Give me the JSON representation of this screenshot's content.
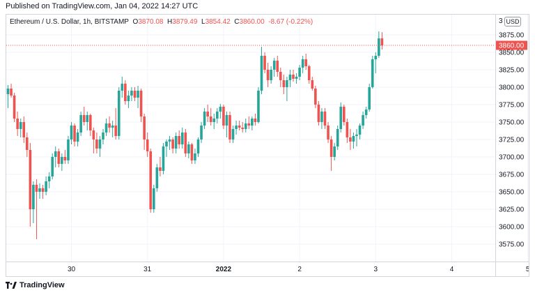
{
  "header": {
    "published": "Published on TradingView.com, Jan 04, 2022 14:27 UTC"
  },
  "legend": {
    "symbol": "Ethereum / U.S. Dollar, 1h, BITSTAMP",
    "o_label": "O",
    "o": "3870.08",
    "h_label": "H",
    "h": "3879.49",
    "l_label": "L",
    "l": "3854.42",
    "c_label": "C",
    "c": "3860.00",
    "change": "-8.67 (-0.22%)"
  },
  "currency_button": "USD",
  "footer": {
    "brand": "TradingView",
    "logo_icon": "tradingview-logo-icon"
  },
  "colors": {
    "up": "#26a69a",
    "down": "#ef5350",
    "grid": "#f0f3fa",
    "text": "#131722"
  },
  "chart_data": {
    "type": "candlestick",
    "title": "Ethereum / U.S. Dollar, 1h, BITSTAMP",
    "ylim": [
      3550,
      3900
    ],
    "yticks": [
      "3575.00",
      "3600.00",
      "3625.00",
      "3650.00",
      "3675.00",
      "3700.00",
      "3725.00",
      "3750.00",
      "3775.00",
      "3800.00",
      "3825.00",
      "3850.00",
      "3875.00"
    ],
    "ytick_values": [
      3575,
      3600,
      3625,
      3650,
      3675,
      3700,
      3725,
      3750,
      3775,
      3800,
      3825,
      3850,
      3875
    ],
    "partial_top_tick": "3",
    "x_ticks": [
      {
        "label": "30",
        "hour": 20,
        "bold": false
      },
      {
        "label": "31",
        "hour": 44,
        "bold": false
      },
      {
        "label": "2022",
        "hour": 68,
        "bold": true
      },
      {
        "label": "2",
        "hour": 92,
        "bold": false
      },
      {
        "label": "3",
        "hour": 116,
        "bold": false
      },
      {
        "label": "4",
        "hour": 140,
        "bold": false
      },
      {
        "label": "5",
        "hour": 164,
        "bold": false
      }
    ],
    "last_price": 3860.0,
    "last_price_label": "3860.00",
    "grid": true,
    "candles": [
      [
        3790,
        3803,
        3770,
        3798
      ],
      [
        3798,
        3805,
        3785,
        3788
      ],
      [
        3788,
        3792,
        3750,
        3755
      ],
      [
        3755,
        3765,
        3730,
        3740
      ],
      [
        3740,
        3755,
        3728,
        3750
      ],
      [
        3750,
        3758,
        3720,
        3728
      ],
      [
        3728,
        3735,
        3700,
        3710
      ],
      [
        3710,
        3720,
        3600,
        3625
      ],
      [
        3625,
        3665,
        3605,
        3660
      ],
      [
        3660,
        3668,
        3582,
        3650
      ],
      [
        3650,
        3662,
        3640,
        3655
      ],
      [
        3655,
        3660,
        3640,
        3650
      ],
      [
        3650,
        3672,
        3645,
        3665
      ],
      [
        3665,
        3678,
        3655,
        3672
      ],
      [
        3672,
        3705,
        3668,
        3700
      ],
      [
        3700,
        3715,
        3685,
        3708
      ],
      [
        3708,
        3712,
        3685,
        3690
      ],
      [
        3690,
        3705,
        3680,
        3700
      ],
      [
        3700,
        3710,
        3690,
        3695
      ],
      [
        3695,
        3730,
        3690,
        3725
      ],
      [
        3725,
        3750,
        3718,
        3745
      ],
      [
        3745,
        3748,
        3715,
        3722
      ],
      [
        3722,
        3740,
        3715,
        3735
      ],
      [
        3735,
        3765,
        3730,
        3760
      ],
      [
        3760,
        3772,
        3745,
        3750
      ],
      [
        3750,
        3765,
        3738,
        3760
      ],
      [
        3760,
        3762,
        3730,
        3738
      ],
      [
        3738,
        3742,
        3705,
        3725
      ],
      [
        3725,
        3735,
        3705,
        3712
      ],
      [
        3712,
        3730,
        3700,
        3725
      ],
      [
        3725,
        3740,
        3718,
        3735
      ],
      [
        3735,
        3755,
        3730,
        3748
      ],
      [
        3748,
        3758,
        3735,
        3742
      ],
      [
        3742,
        3752,
        3728,
        3745
      ],
      [
        3745,
        3770,
        3725,
        3730
      ],
      [
        3730,
        3800,
        3725,
        3795
      ],
      [
        3795,
        3815,
        3785,
        3805
      ],
      [
        3805,
        3810,
        3775,
        3780
      ],
      [
        3780,
        3795,
        3770,
        3788
      ],
      [
        3788,
        3800,
        3780,
        3795
      ],
      [
        3795,
        3800,
        3780,
        3785
      ],
      [
        3785,
        3802,
        3770,
        3795
      ],
      [
        3795,
        3798,
        3750,
        3758
      ],
      [
        3758,
        3762,
        3710,
        3725
      ],
      [
        3725,
        3735,
        3700,
        3708
      ],
      [
        3708,
        3712,
        3620,
        3625
      ],
      [
        3625,
        3660,
        3620,
        3655
      ],
      [
        3655,
        3690,
        3650,
        3685
      ],
      [
        3685,
        3700,
        3672,
        3680
      ],
      [
        3680,
        3720,
        3675,
        3715
      ],
      [
        3715,
        3725,
        3700,
        3722
      ],
      [
        3722,
        3730,
        3710,
        3725
      ],
      [
        3725,
        3728,
        3705,
        3712
      ],
      [
        3712,
        3735,
        3705,
        3730
      ],
      [
        3730,
        3738,
        3712,
        3718
      ],
      [
        3718,
        3742,
        3712,
        3735
      ],
      [
        3735,
        3740,
        3700,
        3705
      ],
      [
        3705,
        3722,
        3698,
        3718
      ],
      [
        3718,
        3720,
        3690,
        3695
      ],
      [
        3695,
        3712,
        3690,
        3705
      ],
      [
        3705,
        3728,
        3700,
        3725
      ],
      [
        3725,
        3750,
        3720,
        3745
      ],
      [
        3745,
        3770,
        3740,
        3765
      ],
      [
        3765,
        3775,
        3750,
        3758
      ],
      [
        3758,
        3770,
        3745,
        3750
      ],
      [
        3750,
        3762,
        3740,
        3755
      ],
      [
        3755,
        3770,
        3748,
        3765
      ],
      [
        3765,
        3776,
        3755,
        3772
      ],
      [
        3772,
        3775,
        3740,
        3745
      ],
      [
        3745,
        3765,
        3728,
        3760
      ],
      [
        3760,
        3765,
        3720,
        3725
      ],
      [
        3725,
        3745,
        3720,
        3740
      ],
      [
        3740,
        3752,
        3732,
        3745
      ],
      [
        3745,
        3752,
        3738,
        3742
      ],
      [
        3742,
        3750,
        3735,
        3740
      ],
      [
        3740,
        3755,
        3735,
        3748
      ],
      [
        3748,
        3758,
        3740,
        3745
      ],
      [
        3745,
        3758,
        3738,
        3755
      ],
      [
        3755,
        3762,
        3745,
        3750
      ],
      [
        3750,
        3800,
        3748,
        3795
      ],
      [
        3795,
        3858,
        3790,
        3845
      ],
      [
        3845,
        3850,
        3820,
        3825
      ],
      [
        3825,
        3835,
        3800,
        3810
      ],
      [
        3810,
        3830,
        3805,
        3825
      ],
      [
        3825,
        3842,
        3815,
        3838
      ],
      [
        3838,
        3845,
        3815,
        3822
      ],
      [
        3822,
        3828,
        3800,
        3810
      ],
      [
        3810,
        3818,
        3790,
        3800
      ],
      [
        3800,
        3815,
        3780,
        3810
      ],
      [
        3810,
        3825,
        3800,
        3818
      ],
      [
        3818,
        3825,
        3808,
        3812
      ],
      [
        3812,
        3820,
        3805,
        3815
      ],
      [
        3815,
        3832,
        3810,
        3828
      ],
      [
        3828,
        3845,
        3820,
        3840
      ],
      [
        3840,
        3848,
        3825,
        3830
      ],
      [
        3830,
        3832,
        3805,
        3810
      ],
      [
        3810,
        3815,
        3795,
        3798
      ],
      [
        3798,
        3802,
        3770,
        3775
      ],
      [
        3775,
        3780,
        3745,
        3750
      ],
      [
        3750,
        3770,
        3740,
        3765
      ],
      [
        3765,
        3770,
        3740,
        3745
      ],
      [
        3745,
        3750,
        3720,
        3725
      ],
      [
        3725,
        3730,
        3680,
        3700
      ],
      [
        3700,
        3720,
        3695,
        3715
      ],
      [
        3715,
        3745,
        3710,
        3740
      ],
      [
        3740,
        3778,
        3735,
        3772
      ],
      [
        3772,
        3775,
        3745,
        3750
      ],
      [
        3750,
        3755,
        3720,
        3728
      ],
      [
        3728,
        3740,
        3710,
        3722
      ],
      [
        3722,
        3735,
        3712,
        3730
      ],
      [
        3730,
        3740,
        3715,
        3732
      ],
      [
        3732,
        3748,
        3725,
        3745
      ],
      [
        3745,
        3765,
        3740,
        3760
      ],
      [
        3760,
        3772,
        3755,
        3768
      ],
      [
        3768,
        3805,
        3765,
        3800
      ],
      [
        3800,
        3845,
        3798,
        3840
      ],
      [
        3840,
        3850,
        3820,
        3845
      ],
      [
        3845,
        3880,
        3842,
        3870
      ],
      [
        3870,
        3879,
        3854,
        3860
      ]
    ]
  }
}
